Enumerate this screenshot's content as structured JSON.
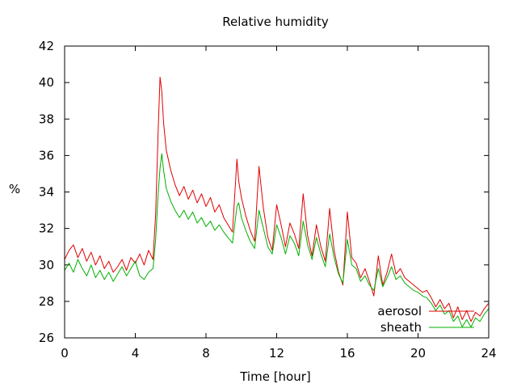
{
  "chart_data": {
    "type": "line",
    "title": "Relative humidity",
    "xlabel": "Time [hour]",
    "ylabel": "%",
    "xlim": [
      0,
      24
    ],
    "ylim": [
      26,
      42
    ],
    "xticks": [
      0,
      4,
      8,
      12,
      16,
      20,
      24
    ],
    "yticks": [
      26,
      28,
      30,
      32,
      34,
      36,
      38,
      40,
      42
    ],
    "grid": false,
    "legend_position": "bottom-right",
    "series": [
      {
        "name": "aerosol",
        "color": "#e00000",
        "x": [
          0,
          0.25,
          0.5,
          0.75,
          1,
          1.25,
          1.5,
          1.75,
          2,
          2.25,
          2.5,
          2.75,
          3,
          3.25,
          3.5,
          3.75,
          4,
          4.25,
          4.5,
          4.75,
          5,
          5.15,
          5.3,
          5.4,
          5.5,
          5.6,
          5.75,
          6,
          6.25,
          6.5,
          6.75,
          7,
          7.25,
          7.5,
          7.75,
          8,
          8.25,
          8.5,
          8.75,
          9,
          9.25,
          9.5,
          9.75,
          9.85,
          10,
          10.25,
          10.5,
          10.75,
          11,
          11.25,
          11.5,
          11.75,
          12,
          12.25,
          12.5,
          12.75,
          13,
          13.25,
          13.5,
          13.75,
          14,
          14.25,
          14.5,
          14.75,
          15,
          15.25,
          15.5,
          15.75,
          16,
          16.25,
          16.5,
          16.75,
          17,
          17.25,
          17.5,
          17.75,
          18,
          18.25,
          18.5,
          18.75,
          19,
          19.25,
          19.5,
          19.75,
          20,
          20.25,
          20.5,
          20.75,
          21,
          21.25,
          21.5,
          21.75,
          22,
          22.25,
          22.5,
          22.75,
          23,
          23.25,
          23.5,
          23.75,
          24
        ],
        "y": [
          30.3,
          30.8,
          31.1,
          30.4,
          30.9,
          30.2,
          30.7,
          30.0,
          30.5,
          29.8,
          30.2,
          29.6,
          29.9,
          30.3,
          29.7,
          30.4,
          30.1,
          30.6,
          30.0,
          30.8,
          30.3,
          32.8,
          37.5,
          40.3,
          39.5,
          37.8,
          36.3,
          35.2,
          34.4,
          33.8,
          34.3,
          33.6,
          34.1,
          33.4,
          33.9,
          33.2,
          33.7,
          32.9,
          33.3,
          32.6,
          32.2,
          31.8,
          35.8,
          34.6,
          33.7,
          32.7,
          31.9,
          31.3,
          35.4,
          33.1,
          31.5,
          30.8,
          33.3,
          32.2,
          31.0,
          32.3,
          31.7,
          30.9,
          33.9,
          31.6,
          30.5,
          32.2,
          31.0,
          30.2,
          33.1,
          30.8,
          29.6,
          28.9,
          32.9,
          30.4,
          30.1,
          29.3,
          29.8,
          29.1,
          28.3,
          30.5,
          28.9,
          29.6,
          30.6,
          29.5,
          29.8,
          29.3,
          29.1,
          28.9,
          28.7,
          28.5,
          28.6,
          28.2,
          27.7,
          28.1,
          27.6,
          27.9,
          27.1,
          27.7,
          27.0,
          27.5,
          26.9,
          27.4,
          27.2,
          27.6,
          27.9
        ]
      },
      {
        "name": "sheath",
        "color": "#00b000",
        "x": [
          0,
          0.25,
          0.5,
          0.75,
          1,
          1.25,
          1.5,
          1.75,
          2,
          2.25,
          2.5,
          2.75,
          3,
          3.25,
          3.5,
          3.75,
          4,
          4.25,
          4.5,
          4.75,
          5,
          5.15,
          5.3,
          5.4,
          5.5,
          5.6,
          5.75,
          6,
          6.25,
          6.5,
          6.75,
          7,
          7.25,
          7.5,
          7.75,
          8,
          8.25,
          8.5,
          8.75,
          9,
          9.25,
          9.5,
          9.75,
          9.85,
          10,
          10.25,
          10.5,
          10.75,
          11,
          11.25,
          11.5,
          11.75,
          12,
          12.25,
          12.5,
          12.75,
          13,
          13.25,
          13.5,
          13.75,
          14,
          14.25,
          14.5,
          14.75,
          15,
          15.25,
          15.5,
          15.75,
          16,
          16.25,
          16.5,
          16.75,
          17,
          17.25,
          17.5,
          17.75,
          18,
          18.25,
          18.5,
          18.75,
          19,
          19.25,
          19.5,
          19.75,
          20,
          20.25,
          20.5,
          20.75,
          21,
          21.25,
          21.5,
          21.75,
          22,
          22.25,
          22.5,
          22.75,
          23,
          23.25,
          23.5,
          23.75,
          24
        ],
        "y": [
          29.7,
          30.1,
          29.6,
          30.3,
          29.8,
          29.4,
          30.0,
          29.3,
          29.7,
          29.2,
          29.6,
          29.1,
          29.5,
          29.9,
          29.4,
          29.8,
          30.2,
          29.4,
          29.2,
          29.6,
          29.8,
          31.4,
          34.0,
          35.3,
          36.1,
          35.2,
          34.2,
          33.5,
          33.0,
          32.6,
          33.0,
          32.5,
          32.9,
          32.3,
          32.6,
          32.1,
          32.4,
          31.9,
          32.2,
          31.8,
          31.5,
          31.2,
          33.2,
          33.4,
          32.6,
          31.9,
          31.3,
          30.9,
          33.0,
          32.0,
          31.0,
          30.6,
          32.2,
          31.5,
          30.6,
          31.6,
          31.2,
          30.5,
          32.4,
          31.1,
          30.3,
          31.5,
          30.6,
          29.9,
          31.7,
          30.4,
          29.5,
          29.0,
          31.4,
          30.0,
          29.8,
          29.1,
          29.4,
          28.9,
          28.6,
          29.8,
          28.8,
          29.3,
          29.9,
          29.2,
          29.4,
          29.0,
          28.8,
          28.6,
          28.5,
          28.3,
          28.2,
          27.9,
          27.5,
          27.8,
          27.3,
          27.5,
          26.9,
          27.2,
          26.6,
          27.0,
          26.6,
          27.1,
          26.9,
          27.3,
          27.6
        ]
      }
    ]
  }
}
